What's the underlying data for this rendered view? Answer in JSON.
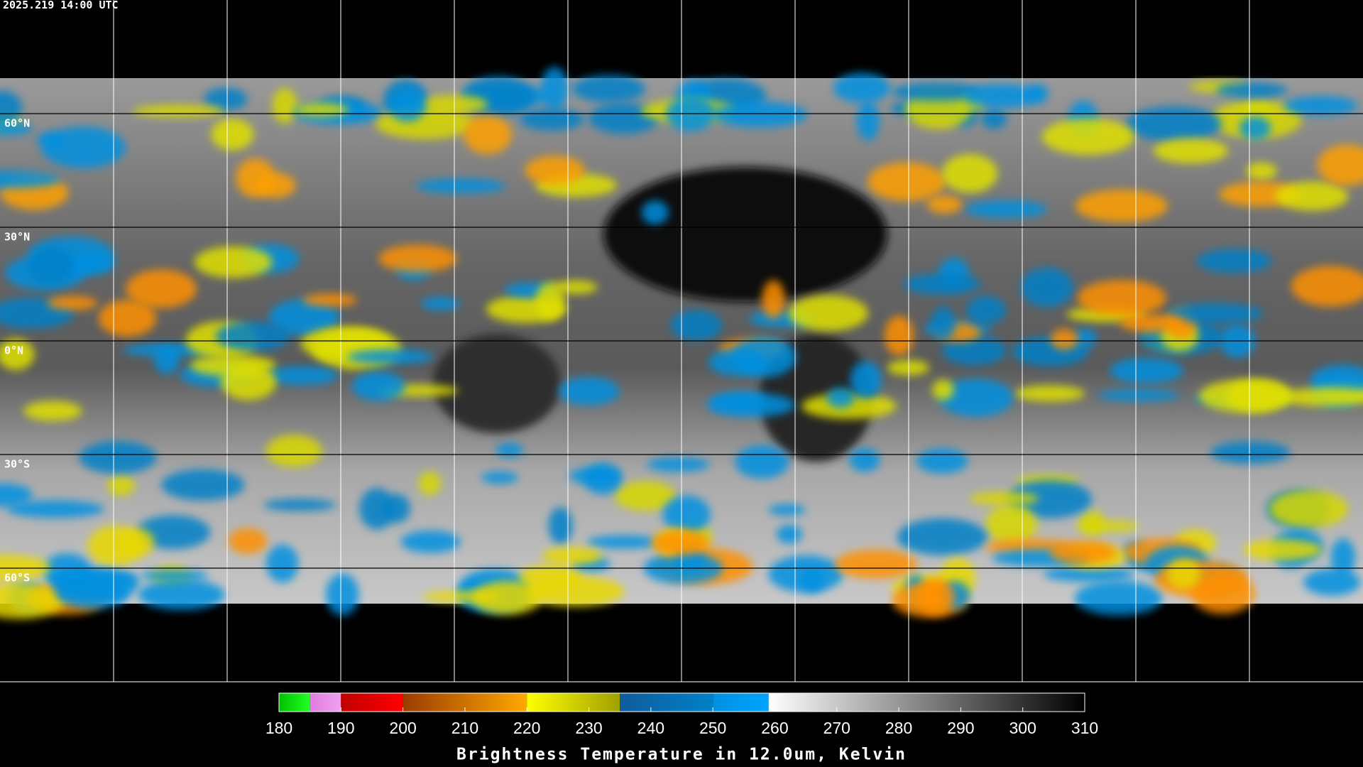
{
  "chart_data": {
    "type": "colormap",
    "timestamp": "2025.219 14:00 UTC",
    "title": "Brightness Temperature in 12.0um, Kelvin",
    "latitudes": [
      {
        "value": 60,
        "label": "60°N"
      },
      {
        "value": 30,
        "label": "30°N"
      },
      {
        "value": 0,
        "label": "0°N"
      },
      {
        "value": -30,
        "label": "30°S"
      },
      {
        "value": -60,
        "label": "60°S"
      }
    ],
    "ylim": [
      90,
      -90
    ],
    "xlim": [
      180,
      310
    ],
    "xticks": [
      180,
      190,
      200,
      210,
      220,
      230,
      240,
      250,
      260,
      270,
      280,
      290,
      300,
      310
    ],
    "segments": [
      {
        "from": 180,
        "to": 185,
        "start": "#00c000",
        "end": "#22ff22"
      },
      {
        "from": 185,
        "to": 190,
        "start": "#e07ce0",
        "end": "#f0a0f0"
      },
      {
        "from": 190,
        "to": 200,
        "start": "#c00000",
        "end": "#ff0000"
      },
      {
        "from": 200,
        "to": 220,
        "start": "#9a3c00",
        "end": "#ffa800"
      },
      {
        "from": 220,
        "to": 235,
        "start": "#ffff00",
        "end": "#a0a000"
      },
      {
        "from": 235,
        "to": 250,
        "start": "#105c9c",
        "end": "#0080c8"
      },
      {
        "from": 250,
        "to": 259,
        "start": "#0090e0",
        "end": "#00a4ff"
      },
      {
        "from": 259,
        "to": 310,
        "start": "#ffffff",
        "end": "#000000"
      }
    ]
  }
}
